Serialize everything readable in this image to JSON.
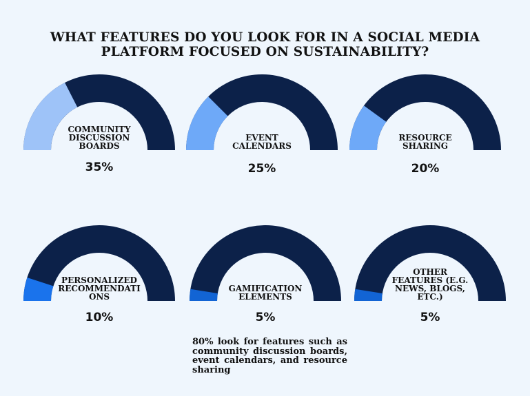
{
  "title_lines": [
    "WHAT FEATURES DO YOU LOOK FOR IN A SOCIAL MEDIA",
    "PLATFORM FOCUSED ON SUSTAINABILITY?"
  ],
  "footnote": "80% look for features such as community discussion boards, event calendars, and resource sharing",
  "colors": {
    "track": "#0c2149",
    "fills": [
      "#9ec3f8",
      "#6ea9f8",
      "#6ea9f8",
      "#1a73ec",
      "#1264d4",
      "#1264d4"
    ]
  },
  "chart_data": {
    "type": "gauge",
    "title": "WHAT FEATURES DO YOU LOOK FOR IN A SOCIAL MEDIA PLATFORM FOCUSED ON SUSTAINABILITY?",
    "max": 100,
    "items": [
      {
        "label_lines": [
          "COMMUNITY",
          "DISCUSSION",
          "BOARDS"
        ],
        "value": 35,
        "value_label": "35%"
      },
      {
        "label_lines": [
          "EVENT",
          "CALENDARS"
        ],
        "value": 25,
        "value_label": "25%"
      },
      {
        "label_lines": [
          "RESOURCE",
          "SHARING"
        ],
        "value": 20,
        "value_label": "20%"
      },
      {
        "label_lines": [
          "PERSONALIZED",
          "RECOMMENDATI",
          "ONS"
        ],
        "value": 10,
        "value_label": "10%"
      },
      {
        "label_lines": [
          "GAMIFICATION",
          "ELEMENTS"
        ],
        "value": 5,
        "value_label": "5%"
      },
      {
        "label_lines": [
          "OTHER",
          "FEATURES (E.G.",
          "NEWS, BLOGS,",
          "ETC.)"
        ],
        "value": 5,
        "value_label": "5%"
      }
    ]
  }
}
